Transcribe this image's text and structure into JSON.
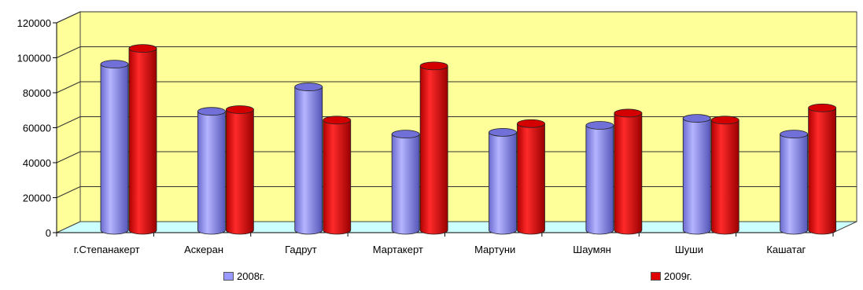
{
  "chart_data": {
    "type": "bar",
    "title": "",
    "xlabel": "",
    "ylabel": "",
    "ylim": [
      0,
      120000
    ],
    "yticks": [
      "0",
      "20000",
      "40000",
      "60000",
      "80000",
      "100000",
      "120000"
    ],
    "categories": [
      "г.Степанакерт",
      "Аскеран",
      "Гадрут",
      "Мартакерт",
      "Мартуни",
      "Шаумян",
      "Шуши",
      "Кашатаг"
    ],
    "series": [
      {
        "name": "2008г.",
        "color": "#8f8fe6",
        "values": [
          95000,
          68000,
          82000,
          55000,
          56000,
          60000,
          64000,
          55000
        ]
      },
      {
        "name": "2009г.",
        "color": "#e00000",
        "values": [
          104000,
          69000,
          63000,
          94000,
          61000,
          67000,
          63000,
          70000
        ]
      }
    ],
    "grid": true,
    "legend_position": "bottom",
    "style": "3d-cylinder",
    "wall_color": "#ffff99",
    "floor_color": "#ccffff"
  }
}
